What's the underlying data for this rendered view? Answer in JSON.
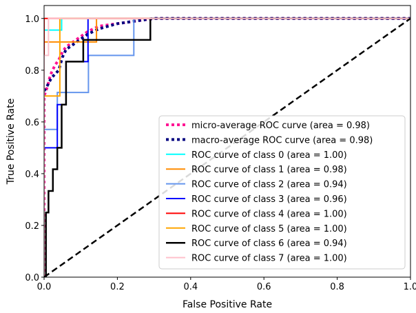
{
  "chart_data": {
    "type": "line",
    "title": "",
    "xlabel": "False Positive Rate",
    "ylabel": "True Positive Rate",
    "xlim": [
      0.0,
      1.0
    ],
    "ylim": [
      0.0,
      1.05
    ],
    "x_ticks": [
      "0.0",
      "0.2",
      "0.4",
      "0.6",
      "0.8",
      "1.0"
    ],
    "y_ticks": [
      "0.0",
      "0.2",
      "0.4",
      "0.6",
      "0.8",
      "1.0"
    ],
    "grid": false,
    "legend_position": "lower-right",
    "series": [
      {
        "name": "micro-average ROC curve (area = 0.98)",
        "color": "#ff1493",
        "style": "dotted",
        "width": 4,
        "points": [
          [
            0,
            0
          ],
          [
            0,
            0.7
          ],
          [
            0.005,
            0.72
          ],
          [
            0.01,
            0.74
          ],
          [
            0.015,
            0.77
          ],
          [
            0.02,
            0.79
          ],
          [
            0.03,
            0.82
          ],
          [
            0.04,
            0.84
          ],
          [
            0.05,
            0.87
          ],
          [
            0.06,
            0.89
          ],
          [
            0.08,
            0.91
          ],
          [
            0.1,
            0.93
          ],
          [
            0.12,
            0.95
          ],
          [
            0.15,
            0.97
          ],
          [
            0.2,
            0.98
          ],
          [
            0.3,
            1.0
          ],
          [
            1,
            1.0
          ]
        ]
      },
      {
        "name": "macro-average ROC curve (area = 0.98)",
        "color": "#000080",
        "style": "dotted",
        "width": 4,
        "points": [
          [
            0,
            0.72
          ],
          [
            0.005,
            0.73
          ],
          [
            0.02,
            0.77
          ],
          [
            0.04,
            0.8
          ],
          [
            0.05,
            0.85
          ],
          [
            0.06,
            0.88
          ],
          [
            0.08,
            0.9
          ],
          [
            0.1,
            0.92
          ],
          [
            0.12,
            0.94
          ],
          [
            0.15,
            0.96
          ],
          [
            0.2,
            0.98
          ],
          [
            0.25,
            0.99
          ],
          [
            0.3,
            1.0
          ],
          [
            1,
            1.0
          ]
        ]
      },
      {
        "name": "ROC curve of class 0 (area = 1.00)",
        "color": "#00ffff",
        "style": "solid",
        "width": 2,
        "points": [
          [
            0,
            0
          ],
          [
            0,
            0.955
          ],
          [
            0.048,
            0.955
          ],
          [
            0.048,
            1.0
          ],
          [
            1,
            1.0
          ]
        ]
      },
      {
        "name": "ROC curve of class 1 (area = 0.98)",
        "color": "#ff8c00",
        "style": "solid",
        "width": 2,
        "points": [
          [
            0,
            0
          ],
          [
            0,
            0.909
          ],
          [
            0.048,
            0.909
          ],
          [
            0.048,
            0.909
          ],
          [
            0.143,
            0.909
          ],
          [
            0.143,
            1.0
          ],
          [
            1,
            1.0
          ]
        ]
      },
      {
        "name": "ROC curve of class 2 (area = 0.94)",
        "color": "#6495ed",
        "style": "solid",
        "width": 2,
        "points": [
          [
            0,
            0
          ],
          [
            0,
            0.571
          ],
          [
            0.036,
            0.571
          ],
          [
            0.036,
            0.714
          ],
          [
            0.121,
            0.714
          ],
          [
            0.121,
            0.857
          ],
          [
            0.245,
            0.857
          ],
          [
            0.245,
            1.0
          ],
          [
            1,
            1.0
          ]
        ]
      },
      {
        "name": "ROC curve of class 3 (area = 0.96)",
        "color": "#0000ff",
        "style": "solid",
        "width": 2,
        "points": [
          [
            0,
            0
          ],
          [
            0,
            0.5
          ],
          [
            0.036,
            0.5
          ],
          [
            0.036,
            0.667
          ],
          [
            0.06,
            0.667
          ],
          [
            0.06,
            0.833
          ],
          [
            0.12,
            0.833
          ],
          [
            0.12,
            1.0
          ],
          [
            1,
            1.0
          ]
        ]
      },
      {
        "name": "ROC curve of class 4 (area = 1.00)",
        "color": "#ff0000",
        "style": "solid",
        "width": 2,
        "points": [
          [
            0,
            0
          ],
          [
            0,
            1.0
          ],
          [
            1,
            1.0
          ]
        ]
      },
      {
        "name": "ROC curve of class 5 (area = 1.00)",
        "color": "#ffa500",
        "style": "solid",
        "width": 2,
        "points": [
          [
            0,
            0
          ],
          [
            0,
            0.7
          ],
          [
            0.043,
            0.7
          ],
          [
            0.043,
            1.0
          ],
          [
            1,
            1.0
          ]
        ]
      },
      {
        "name": "ROC curve of class 6 (area = 0.94)",
        "color": "#000000",
        "style": "solid",
        "width": 2.5,
        "points": [
          [
            0,
            0
          ],
          [
            0.005,
            0
          ],
          [
            0.005,
            0.25
          ],
          [
            0.012,
            0.25
          ],
          [
            0.012,
            0.333
          ],
          [
            0.024,
            0.333
          ],
          [
            0.024,
            0.417
          ],
          [
            0.036,
            0.417
          ],
          [
            0.036,
            0.5
          ],
          [
            0.048,
            0.5
          ],
          [
            0.048,
            0.667
          ],
          [
            0.06,
            0.667
          ],
          [
            0.06,
            0.833
          ],
          [
            0.107,
            0.833
          ],
          [
            0.107,
            0.917
          ],
          [
            0.29,
            0.917
          ],
          [
            0.29,
            1.0
          ],
          [
            1,
            1.0
          ]
        ]
      },
      {
        "name": "ROC curve of class 7 (area = 1.00)",
        "color": "#ffc0cb",
        "style": "solid",
        "width": 2,
        "points": [
          [
            0,
            0
          ],
          [
            0,
            0.857
          ],
          [
            0.012,
            0.857
          ],
          [
            0.012,
            1.0
          ],
          [
            1,
            1.0
          ]
        ]
      }
    ],
    "reference_line": {
      "points": [
        [
          0,
          0
        ],
        [
          1,
          1
        ]
      ],
      "color": "#000000",
      "style": "dashed"
    }
  }
}
